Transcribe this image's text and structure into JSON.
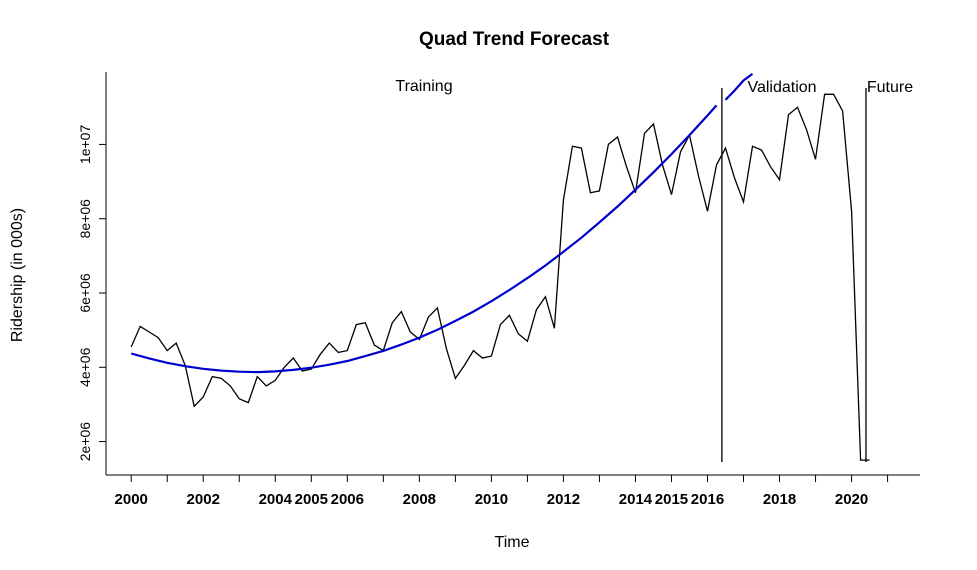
{
  "chart_data": {
    "type": "line",
    "title": "Quad Trend Forecast",
    "xlabel": "Time",
    "ylabel": "Ridership (in 000s)",
    "xlim": [
      1999.3,
      2021.9
    ],
    "ylim": [
      1100000,
      11950000
    ],
    "x_ticks": [
      2000,
      2002,
      2004,
      2005,
      2006,
      2008,
      2010,
      2012,
      2014,
      2015,
      2016,
      2018,
      2020
    ],
    "x_tick_labels": [
      "2000",
      "2002",
      "2004",
      "2005",
      "2006",
      "2008",
      "2010",
      "2012",
      "2014",
      "2015",
      "2016",
      "2018",
      "2020"
    ],
    "y_ticks": [
      2000000,
      4000000,
      6000000,
      8000000,
      10000000
    ],
    "y_tick_labels": [
      "2e+06",
      "4e+06",
      "6e+06",
      "8e+06",
      "1e+07"
    ],
    "annotations": [
      "Training",
      "Validation",
      "Future"
    ],
    "partition_lines": [
      2016.4,
      2020.4
    ],
    "colors": {
      "actual": "#000000",
      "trend": "#0000CD"
    },
    "series": [
      {
        "x": [
          2000.0,
          2000.25,
          2000.5,
          2000.75,
          2001.0,
          2001.25,
          2001.5,
          2001.75,
          2002.0,
          2002.25,
          2002.5,
          2002.75,
          2003.0,
          2003.25,
          2003.5,
          2003.75,
          2004.0,
          2004.25,
          2004.5,
          2004.75,
          2005.0,
          2005.25,
          2005.5,
          2005.75,
          2006.0,
          2006.25,
          2006.5,
          2006.75,
          2007.0,
          2007.25,
          2007.5,
          2007.75,
          2008.0,
          2008.25,
          2008.5,
          2008.75,
          2009.0,
          2009.25,
          2009.5,
          2009.75,
          2010.0,
          2010.25,
          2010.5,
          2010.75,
          2011.0,
          2011.25,
          2011.5,
          2011.75,
          2012.0,
          2012.25,
          2012.5,
          2012.75,
          2013.0,
          2013.25,
          2013.5,
          2013.75,
          2014.0,
          2014.25,
          2014.5,
          2014.75,
          2015.0,
          2015.25,
          2015.5,
          2015.75,
          2016.0,
          2016.25,
          2016.5,
          2016.75,
          2017.0,
          2017.25,
          2017.5,
          2017.75,
          2018.0,
          2018.25,
          2018.5,
          2018.75,
          2019.0,
          2019.25,
          2019.5,
          2019.75,
          2020.0,
          2020.25,
          2020.5
        ],
        "values": [
          4550000,
          5100000,
          4950000,
          4800000,
          4450000,
          4650000,
          4050000,
          2950000,
          3200000,
          3750000,
          3700000,
          3500000,
          3150000,
          3050000,
          3750000,
          3500000,
          3650000,
          4000000,
          4250000,
          3900000,
          3950000,
          4350000,
          4650000,
          4400000,
          4450000,
          5150000,
          5200000,
          4600000,
          4450000,
          5200000,
          5500000,
          4950000,
          4750000,
          5350000,
          5600000,
          4500000,
          3700000,
          4050000,
          4450000,
          4250000,
          4300000,
          5150000,
          5400000,
          4900000,
          4700000,
          5550000,
          5900000,
          5050000,
          8500000,
          9950000,
          9900000,
          8700000,
          8750000,
          10000000,
          10200000,
          9400000,
          8700000,
          10300000,
          10550000,
          9450000,
          8650000,
          9800000,
          10250000,
          9150000,
          8200000,
          9450000,
          9900000,
          9100000,
          8450000,
          9950000,
          9850000,
          9400000,
          9050000,
          10800000,
          11000000,
          10400000,
          9600000,
          11350000,
          11350000,
          10900000,
          8200000,
          1500000,
          1500000
        ]
      },
      {
        "x": [
          2000.0,
          2000.5,
          2001.0,
          2001.5,
          2002.0,
          2002.5,
          2003.0,
          2003.5,
          2004.0,
          2004.5,
          2005.0,
          2005.5,
          2006.0,
          2006.5,
          2007.0,
          2007.5,
          2008.0,
          2008.5,
          2009.0,
          2009.5,
          2010.0,
          2010.5,
          2011.0,
          2011.5,
          2012.0,
          2012.5,
          2013.0,
          2013.5,
          2014.0,
          2014.5,
          2015.0,
          2015.5,
          2016.0,
          2016.25,
          2016.5,
          2016.75,
          2017.0,
          2017.25
        ],
        "values": [
          4370000,
          4240000,
          4120000,
          4030000,
          3960000,
          3910000,
          3880000,
          3870000,
          3890000,
          3930000,
          3990000,
          4070000,
          4170000,
          4300000,
          4440000,
          4610000,
          4800000,
          5010000,
          5250000,
          5500000,
          5780000,
          6080000,
          6400000,
          6740000,
          7110000,
          7490000,
          7900000,
          8330000,
          8780000,
          9250000,
          9740000,
          10250000,
          10780000,
          11050000,
          11200000,
          11450000,
          11720000,
          11900000
        ]
      }
    ]
  }
}
